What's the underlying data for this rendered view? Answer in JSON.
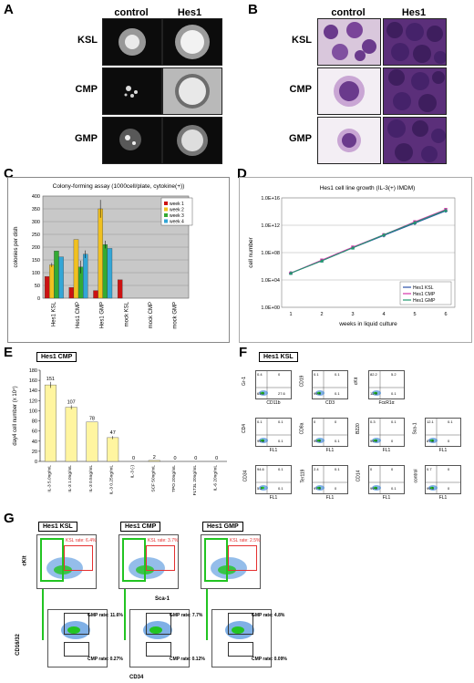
{
  "panels": {
    "A": {
      "letter": "A",
      "cols": [
        "control",
        "Hes1"
      ],
      "rows": [
        "KSL",
        "CMP",
        "GMP"
      ]
    },
    "B": {
      "letter": "B",
      "cols": [
        "control",
        "Hes1"
      ],
      "rows": [
        "KSL",
        "CMP",
        "GMP"
      ]
    },
    "C": {
      "letter": "C"
    },
    "D": {
      "letter": "D"
    },
    "E": {
      "letter": "E",
      "box_label": "Hes1 CMP"
    },
    "F": {
      "letter": "F",
      "box_label": "Hes1 KSL"
    },
    "G": {
      "letter": "G"
    }
  },
  "chart_data": [
    {
      "id": "C",
      "type": "bar",
      "title": "Colony-forming assay (1000cell/plate, cytokine(+))",
      "ylabel": "colonies per dish",
      "ylim": [
        0,
        400
      ],
      "yticks": [
        0,
        50,
        100,
        150,
        200,
        250,
        300,
        350,
        400
      ],
      "categories": [
        "Hes1 KSL",
        "Hes1 CMP",
        "Hes1 GMP",
        "mock KSL",
        "mock CMP",
        "mock GMP"
      ],
      "series": [
        {
          "name": "week 1",
          "color": "#cc1111",
          "values": [
            85,
            42,
            30,
            72,
            0,
            0
          ]
        },
        {
          "name": "week 2",
          "color": "#f0c020",
          "values": [
            130,
            230,
            350,
            0,
            0,
            0
          ]
        },
        {
          "name": "week 3",
          "color": "#33aa33",
          "values": [
            185,
            122,
            210,
            0,
            0,
            0
          ]
        },
        {
          "name": "week 4",
          "color": "#33a6d6",
          "values": [
            162,
            172,
            195,
            0,
            0,
            0
          ]
        }
      ],
      "legend_position": "top-right",
      "background": "#c8c8c8"
    },
    {
      "id": "D",
      "type": "line",
      "title": "Hes1 cell line growth (IL-3(+) IMDM)",
      "xlabel": "weeks in liquid culture",
      "ylabel": "cell number",
      "x": [
        1,
        2,
        3,
        4,
        5,
        6
      ],
      "yscale": "log",
      "yticks": [
        "1.0E+00",
        "1.0E+04",
        "1.0E+08",
        "1.0E+12",
        "1.0E+16"
      ],
      "ylim_log10": [
        0,
        16
      ],
      "series": [
        {
          "name": "Hes1 KSL",
          "color": "#2a4fa8",
          "marker": "diamond",
          "log10_values": [
            5.0,
            6.8,
            8.7,
            10.5,
            12.3,
            14.1
          ]
        },
        {
          "name": "Hes1 CMP",
          "color": "#d633a8",
          "marker": "square",
          "log10_values": [
            5.0,
            6.9,
            8.8,
            10.6,
            12.5,
            14.3
          ]
        },
        {
          "name": "Hes1 GMP",
          "color": "#1f9a6e",
          "marker": "triangle",
          "log10_values": [
            5.0,
            6.8,
            8.7,
            10.6,
            12.4,
            14.2
          ]
        }
      ],
      "legend_position": "bottom-right"
    },
    {
      "id": "E",
      "type": "bar",
      "ylabel": "day4 cell number (x 10⁴)",
      "ylim": [
        0,
        180
      ],
      "yticks": [
        0,
        20,
        40,
        60,
        80,
        100,
        120,
        140,
        160,
        180
      ],
      "categories": [
        "IL-3 5.0ng/mL",
        "IL-3 1.0ng/mL",
        "IL-3 0.5ng/mL",
        "IL-3 0.25ng/mL",
        "IL-3 (-)",
        "SCF 50ng/mL",
        "TPO 20ng/mL",
        "FLT3L 20ng/mL",
        "IL-6 20ng/mL"
      ],
      "values": [
        151,
        107,
        78,
        47,
        0,
        2,
        0,
        0,
        0
      ],
      "data_labels": [
        "151",
        "107",
        "78",
        "47",
        "0",
        "2",
        "0",
        "0",
        "0"
      ],
      "color": "#fff5a0"
    }
  ],
  "facs_F": [
    {
      "y": "Gr-1",
      "x": "CD11b",
      "tl": "0.4",
      "tr": "0",
      "bl": "63.0",
      "br": "27.6"
    },
    {
      "y": "CD19",
      "x": "CD3",
      "tl": "0.1",
      "tr": "0.1",
      "bl": "99.8",
      "br": "0.1"
    },
    {
      "y": "cKit",
      "x": "FcεR1α",
      "tl": "82.2",
      "tr": "5.2",
      "bl": "12.5",
      "br": "0.1"
    },
    {
      "y": "CD4",
      "x": "FL1",
      "tl": "0.1",
      "tr": "0.1",
      "bl": "99.6",
      "br": "0.1"
    },
    {
      "y": "CD8a",
      "x": "FL1",
      "tl": "0",
      "tr": "0",
      "bl": "99.9",
      "br": "0.1"
    },
    {
      "y": "B220",
      "x": "FL1",
      "tl": "0.3",
      "tr": "0.1",
      "bl": "99.9",
      "br": "0"
    },
    {
      "y": "Sca-1",
      "x": "FL1",
      "tl": "12.1",
      "tr": "0.1",
      "bl": "87.8",
      "br": "0"
    },
    {
      "y": "CD34",
      "x": "FL1",
      "tl": "94.6",
      "tr": "0.1",
      "bl": "5.2",
      "br": "0.1"
    },
    {
      "y": "Ter119",
      "x": "FL1",
      "tl": "2.4",
      "tr": "0.1",
      "bl": "97.5",
      "br": "0"
    },
    {
      "y": "CD14",
      "x": "FL1",
      "tl": "0",
      "tr": "0",
      "bl": "99.9",
      "br": "0.1"
    },
    {
      "y": "control",
      "x": "FL1",
      "tl": "0.7",
      "tr": "0",
      "bl": "99.3",
      "br": "0",
      "ylabel_hidden": true
    }
  ],
  "facs_G": {
    "top": [
      {
        "label": "Hes1 KSL",
        "ksl_rate": "KSL rate: 6.4%"
      },
      {
        "label": "Hes1 CMP",
        "ksl_rate": "KSL rate: 3.7%"
      },
      {
        "label": "Hes1 GMP",
        "ksl_rate": "KSL rate: 2.5%"
      }
    ],
    "bottom": [
      {
        "gmp_rate": "GMP rate: 11.6%",
        "cmp_rate": "CMP rate: 0.27%"
      },
      {
        "gmp_rate": "GMP rate: 7.7%",
        "cmp_rate": "CMP rate: 0.12%"
      },
      {
        "gmp_rate": "GMP rate: 4.8%",
        "cmp_rate": "CMP rate: 0.09%"
      }
    ],
    "axis": {
      "top_y": "cKit",
      "top_x": "Sca-1",
      "bottom_y": "CD16/32",
      "bottom_x": "CD34"
    }
  }
}
